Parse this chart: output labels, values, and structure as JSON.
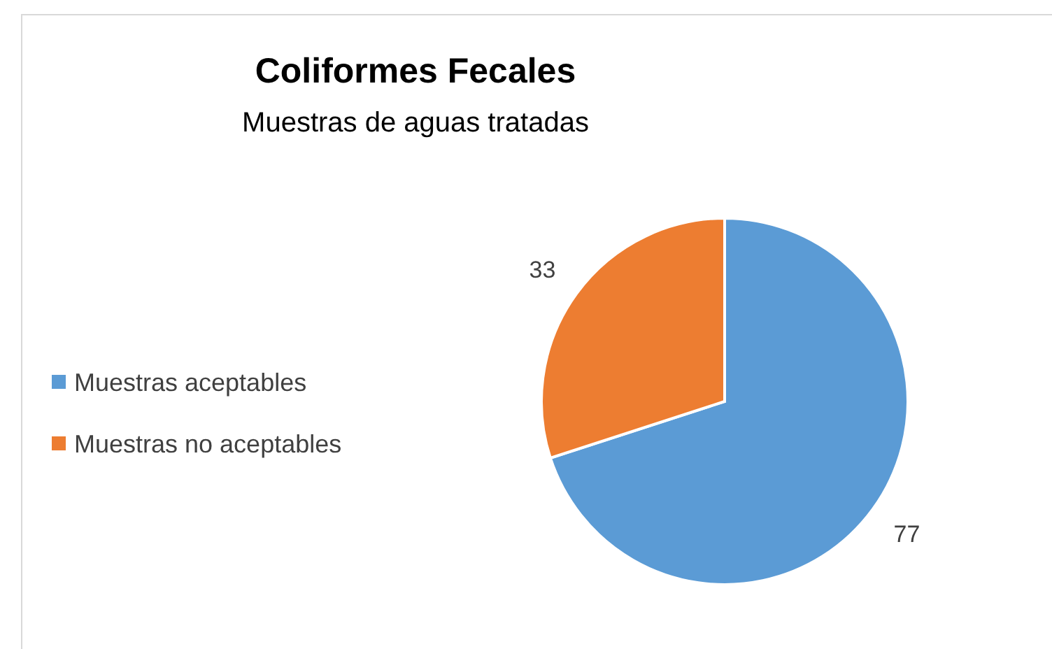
{
  "chart_data": {
    "type": "pie",
    "title": "Coliformes Fecales",
    "subtitle": "Muestras de aguas tratadas",
    "categories": [
      "Muestras aceptables",
      "Muestras no aceptables"
    ],
    "values": [
      77,
      33
    ],
    "colors": [
      "#5b9bd5",
      "#ed7d31"
    ],
    "data_labels": true,
    "legend": "left"
  }
}
